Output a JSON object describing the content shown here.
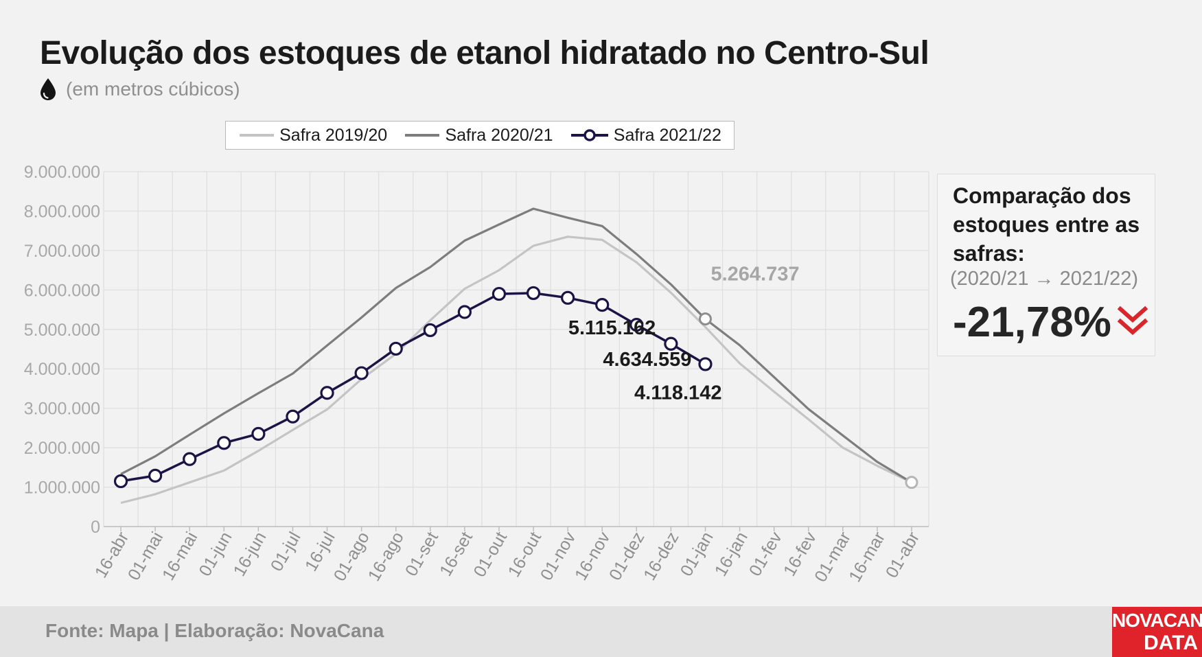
{
  "header": {
    "title": "Evolução dos estoques de etanol hidratado no Centro-Sul",
    "subtitle": "(em metros cúbicos)",
    "subtitle_icon": "drop-icon"
  },
  "comparison": {
    "title": "Comparação dos estoques entre as safras:",
    "period": "(2020/21 → 2021/22)",
    "value": "-21,78%",
    "icon": "double-chevron-down-icon",
    "color": "#d9262c"
  },
  "footer": {
    "source": "Fonte: Mapa | Elaboração: NovaCana",
    "logo_line1": "NOVACANA",
    "logo_line2": "DATA"
  },
  "chart_data": {
    "type": "line",
    "categories": [
      "16-abr",
      "01-mai",
      "16-mai",
      "01-jun",
      "16-jun",
      "01-jul",
      "16-jul",
      "01-ago",
      "16-ago",
      "01-set",
      "16-set",
      "01-out",
      "16-out",
      "01-nov",
      "16-nov",
      "01-dez",
      "16-dez",
      "01-jan",
      "16-jan",
      "01-fev",
      "16-fev",
      "01-mar",
      "16-mar",
      "01-abr"
    ],
    "ylim": [
      0,
      9000000
    ],
    "yticks": [
      0,
      1000000,
      2000000,
      3000000,
      4000000,
      5000000,
      6000000,
      7000000,
      8000000,
      9000000
    ],
    "ytick_labels": [
      "0",
      "1.000.000",
      "2.000.000",
      "3.000.000",
      "4.000.000",
      "5.000.000",
      "6.000.000",
      "7.000.000",
      "8.000.000",
      "9.000.000"
    ],
    "grid": true,
    "legend_position": "top",
    "series": [
      {
        "name": "Safra 2019/20",
        "color": "#c4c4c4",
        "markers": false,
        "values": [
          600000,
          820000,
          1120000,
          1420000,
          1920000,
          2450000,
          2970000,
          3740000,
          4380000,
          5230000,
          6030000,
          6500000,
          7120000,
          7350000,
          7270000,
          6700000,
          5930000,
          5060000,
          4140000,
          3420000,
          2720000,
          2000000,
          1540000,
          1120000
        ]
      },
      {
        "name": "Safra 2020/21",
        "color": "#7d7d7d",
        "markers": false,
        "values": [
          1330000,
          1780000,
          2330000,
          2870000,
          3380000,
          3880000,
          4590000,
          5300000,
          6050000,
          6580000,
          7250000,
          7660000,
          8060000,
          7830000,
          7620000,
          6910000,
          6140000,
          5264737,
          4600000,
          3790000,
          2980000,
          2310000,
          1640000,
          1120000
        ]
      },
      {
        "name": "Safra 2021/22",
        "color": "#1b1446",
        "markers": true,
        "values": [
          1150000,
          1290000,
          1710000,
          2120000,
          2350000,
          2790000,
          3390000,
          3890000,
          4510000,
          4980000,
          5440000,
          5900000,
          5920000,
          5800000,
          5620000,
          5115162,
          4634559,
          4118142,
          null,
          null,
          null,
          null,
          null,
          null
        ]
      }
    ],
    "annotations": [
      {
        "text": "5.264.737",
        "color": "#a6a6a6",
        "series": 1,
        "index": 17
      },
      {
        "text": "5.115.162",
        "color": "#1b1b1b",
        "series": 2,
        "index": 15
      },
      {
        "text": "4.634.559",
        "color": "#1b1b1b",
        "series": 2,
        "index": 16
      },
      {
        "text": "4.118.142",
        "color": "#1b1b1b",
        "series": 2,
        "index": 17
      }
    ],
    "highlight_point": {
      "series": 0,
      "index": 23
    }
  }
}
